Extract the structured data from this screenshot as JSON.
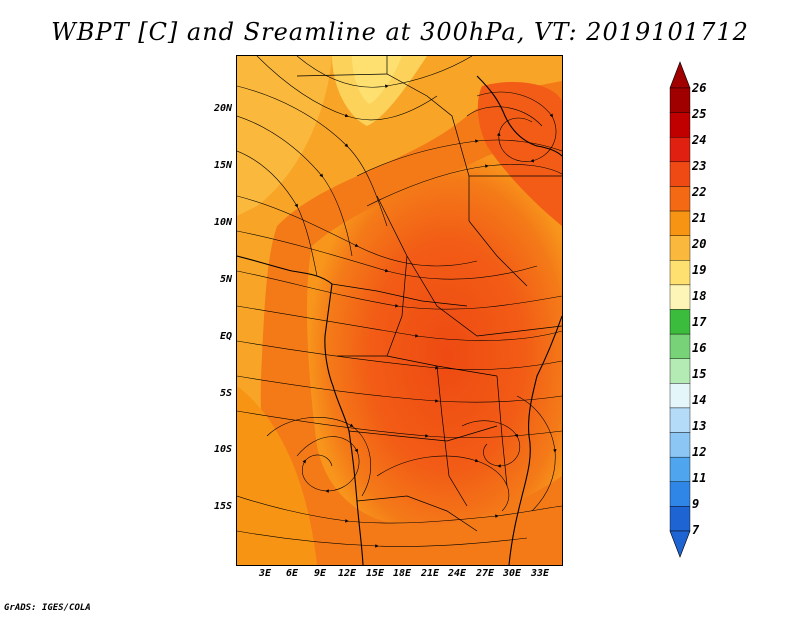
{
  "title": "WBPT [C] and Sreamline at 300hPa, VT: 2019101712",
  "footer": "GrADS: IGES/COLA",
  "map": {
    "variable": "Wet-bulb potential temperature with streamlines",
    "level": "300hPa",
    "valid_time": "2019101712",
    "lat_range": [
      -20,
      24.5
    ],
    "lon_range": [
      0,
      35.5
    ],
    "lat_ticks": [
      {
        "value": 20,
        "label": "20N"
      },
      {
        "value": 15,
        "label": "15N"
      },
      {
        "value": 10,
        "label": "10N"
      },
      {
        "value": 5,
        "label": "5N"
      },
      {
        "value": 0,
        "label": "EQ"
      },
      {
        "value": -5,
        "label": "5S"
      },
      {
        "value": -10,
        "label": "10S"
      },
      {
        "value": -15,
        "label": "15S"
      }
    ],
    "lon_ticks": [
      {
        "value": 3,
        "label": "3E"
      },
      {
        "value": 6,
        "label": "6E"
      },
      {
        "value": 9,
        "label": "9E"
      },
      {
        "value": 12,
        "label": "12E"
      },
      {
        "value": 15,
        "label": "15E"
      },
      {
        "value": 18,
        "label": "18E"
      },
      {
        "value": 21,
        "label": "21E"
      },
      {
        "value": 24,
        "label": "24E"
      },
      {
        "value": 27,
        "label": "27E"
      },
      {
        "value": 30,
        "label": "30E"
      },
      {
        "value": 33,
        "label": "33E"
      }
    ]
  },
  "colorbar": {
    "levels": [
      {
        "label": "26",
        "color": "#a00000"
      },
      {
        "label": "25",
        "color": "#c00000"
      },
      {
        "label": "24",
        "color": "#e02010"
      },
      {
        "label": "23",
        "color": "#f04a14"
      },
      {
        "label": "22",
        "color": "#f46a14"
      },
      {
        "label": "21",
        "color": "#f89414"
      },
      {
        "label": "20",
        "color": "#fab83c"
      },
      {
        "label": "19",
        "color": "#fde070"
      },
      {
        "label": "18",
        "color": "#fdf5b8"
      },
      {
        "label": "17",
        "color": "#3cbc3c"
      },
      {
        "label": "16",
        "color": "#78d278"
      },
      {
        "label": "15",
        "color": "#b4eab4"
      },
      {
        "label": "14",
        "color": "#e4f6fa"
      },
      {
        "label": "13",
        "color": "#b4dcf8"
      },
      {
        "label": "12",
        "color": "#8cc6f4"
      },
      {
        "label": "11",
        "color": "#50a6ee"
      },
      {
        "label": "9",
        "color": "#2f86e6"
      },
      {
        "label": "7",
        "color": "#1e64d2"
      }
    ],
    "top_arrow_color": "#a00000",
    "bottom_arrow_color": "#1e64d2"
  }
}
